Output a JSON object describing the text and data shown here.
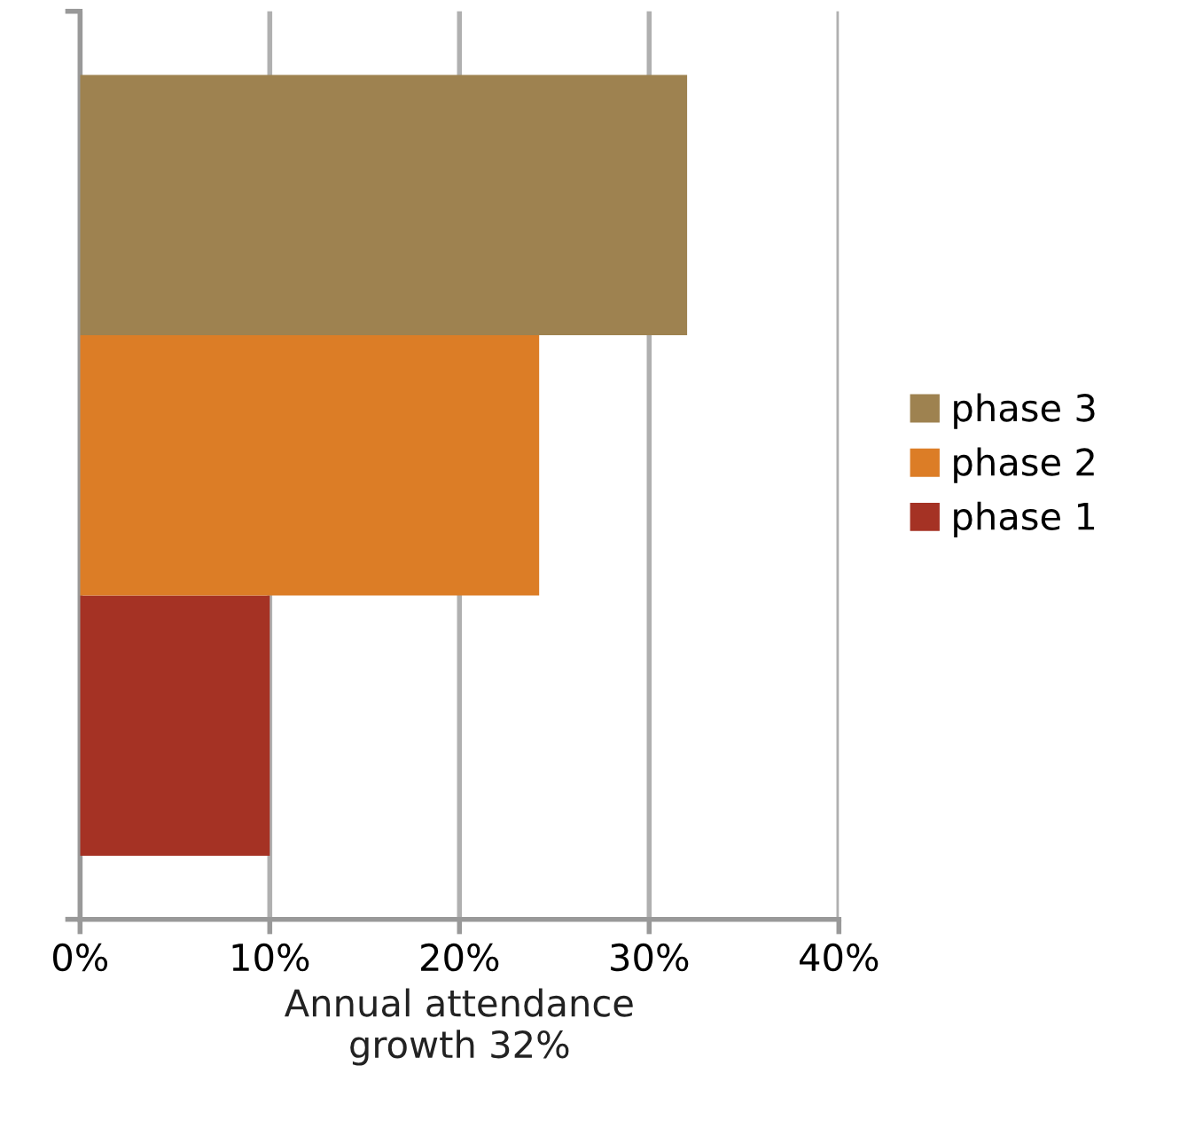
{
  "chart_data": {
    "type": "bar",
    "orientation": "horizontal",
    "xlabel": "Annual attendance\ngrowth 32%",
    "categories": [
      null
    ],
    "series": [
      {
        "name": "phase 1",
        "color": "#a53224",
        "values": [
          10
        ]
      },
      {
        "name": "phase 2",
        "color": "#dc7d26",
        "values": [
          24.2
        ]
      },
      {
        "name": "phase 3",
        "color": "#9e8250",
        "values": [
          32
        ]
      }
    ],
    "xlim": [
      0,
      40
    ],
    "xticks": [
      {
        "value": 0,
        "label": "0%"
      },
      {
        "value": 10,
        "label": "10%"
      },
      {
        "value": 20,
        "label": "20%"
      },
      {
        "value": 30,
        "label": "30%"
      },
      {
        "value": 40,
        "label": "40%"
      }
    ],
    "grid": "x",
    "legend": "right"
  }
}
